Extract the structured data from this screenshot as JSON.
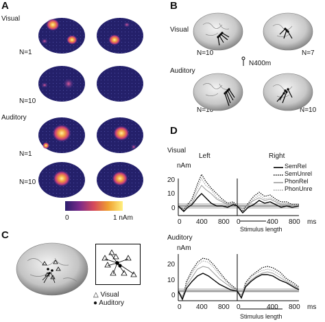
{
  "panel_a": {
    "letter": "A",
    "rows": [
      {
        "group": "Visual",
        "n": "N=1"
      },
      {
        "group": "",
        "n": "N=10"
      },
      {
        "group": "Auditory",
        "n": "N=1"
      },
      {
        "group": "",
        "n": "N=10"
      }
    ],
    "colorbar": {
      "min_label": "0",
      "max_label": "1 nAm",
      "colors": [
        "#2a1e6e",
        "#7a2a8a",
        "#d64a5a",
        "#f0a030",
        "#fff080"
      ]
    }
  },
  "panel_b": {
    "letter": "B",
    "rows": [
      {
        "group": "Visual",
        "n_left": "N=10",
        "n_right": "N=7"
      },
      {
        "group": "Auditory",
        "n_left": "N=10",
        "n_right": "N=10"
      }
    ],
    "legend_label": "N400m"
  },
  "panel_c": {
    "letter": "C",
    "legend": [
      {
        "symbol": "△",
        "label": "Visual"
      },
      {
        "symbol": "●",
        "label": "Auditory"
      }
    ]
  },
  "panel_d": {
    "letter": "D",
    "col_left": "Left",
    "col_right": "Right",
    "legend": [
      {
        "name": "SemRel",
        "color": "#000000",
        "style": "solid"
      },
      {
        "name": "SemUnrel",
        "color": "#000000",
        "style": "dotted"
      },
      {
        "name": "PhonRel",
        "color": "#999999",
        "style": "solid"
      },
      {
        "name": "PhonUnre",
        "color": "#999999",
        "style": "dotted"
      }
    ],
    "unit_label": "nAm",
    "x_unit": "ms",
    "stim_label": "Stimulus length",
    "modalities": [
      {
        "name": "Visual",
        "y_ticks": [
          "20",
          "10",
          "0"
        ],
        "x_ticks": [
          "0",
          "400",
          "800"
        ]
      },
      {
        "name": "Auditory",
        "y_ticks": [
          "20",
          "10",
          "0"
        ],
        "x_ticks": [
          "0",
          "400",
          "800"
        ]
      }
    ]
  }
}
